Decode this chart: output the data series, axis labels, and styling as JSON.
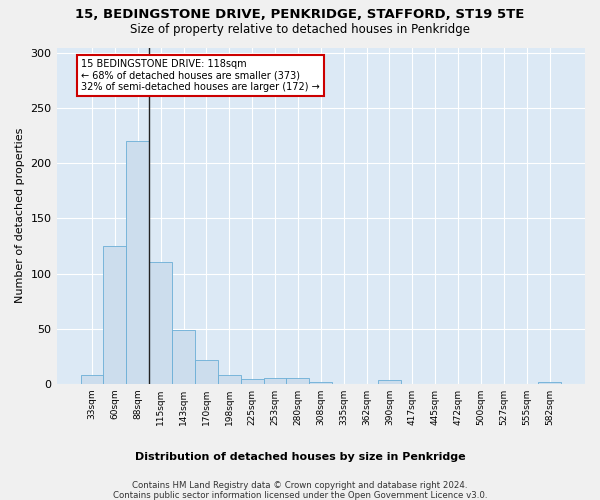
{
  "title": "15, BEDINGSTONE DRIVE, PENKRIDGE, STAFFORD, ST19 5TE",
  "subtitle": "Size of property relative to detached houses in Penkridge",
  "xlabel": "Distribution of detached houses by size in Penkridge",
  "ylabel": "Number of detached properties",
  "bin_labels": [
    "33sqm",
    "60sqm",
    "88sqm",
    "115sqm",
    "143sqm",
    "170sqm",
    "198sqm",
    "225sqm",
    "253sqm",
    "280sqm",
    "308sqm",
    "335sqm",
    "362sqm",
    "390sqm",
    "417sqm",
    "445sqm",
    "472sqm",
    "500sqm",
    "527sqm",
    "555sqm",
    "582sqm"
  ],
  "bar_values": [
    8,
    125,
    220,
    110,
    49,
    22,
    8,
    4,
    5,
    5,
    2,
    0,
    0,
    3,
    0,
    0,
    0,
    0,
    0,
    0,
    2
  ],
  "bar_color": "#ccdded",
  "bar_edge_color": "#6aaed6",
  "vline_x": 2.5,
  "vline_color": "#222222",
  "annotation_line1": "15 BEDINGSTONE DRIVE: 118sqm",
  "annotation_line2": "← 68% of detached houses are smaller (373)",
  "annotation_line3": "32% of semi-detached houses are larger (172) →",
  "annotation_box_facecolor": "#ffffff",
  "annotation_box_edgecolor": "#cc0000",
  "ylim": [
    0,
    305
  ],
  "yticks": [
    0,
    50,
    100,
    150,
    200,
    250,
    300
  ],
  "footnote1": "Contains HM Land Registry data © Crown copyright and database right 2024.",
  "footnote2": "Contains public sector information licensed under the Open Government Licence v3.0.",
  "plot_bg_color": "#dce9f5",
  "fig_bg_color": "#f0f0f0",
  "grid_color": "#ffffff"
}
